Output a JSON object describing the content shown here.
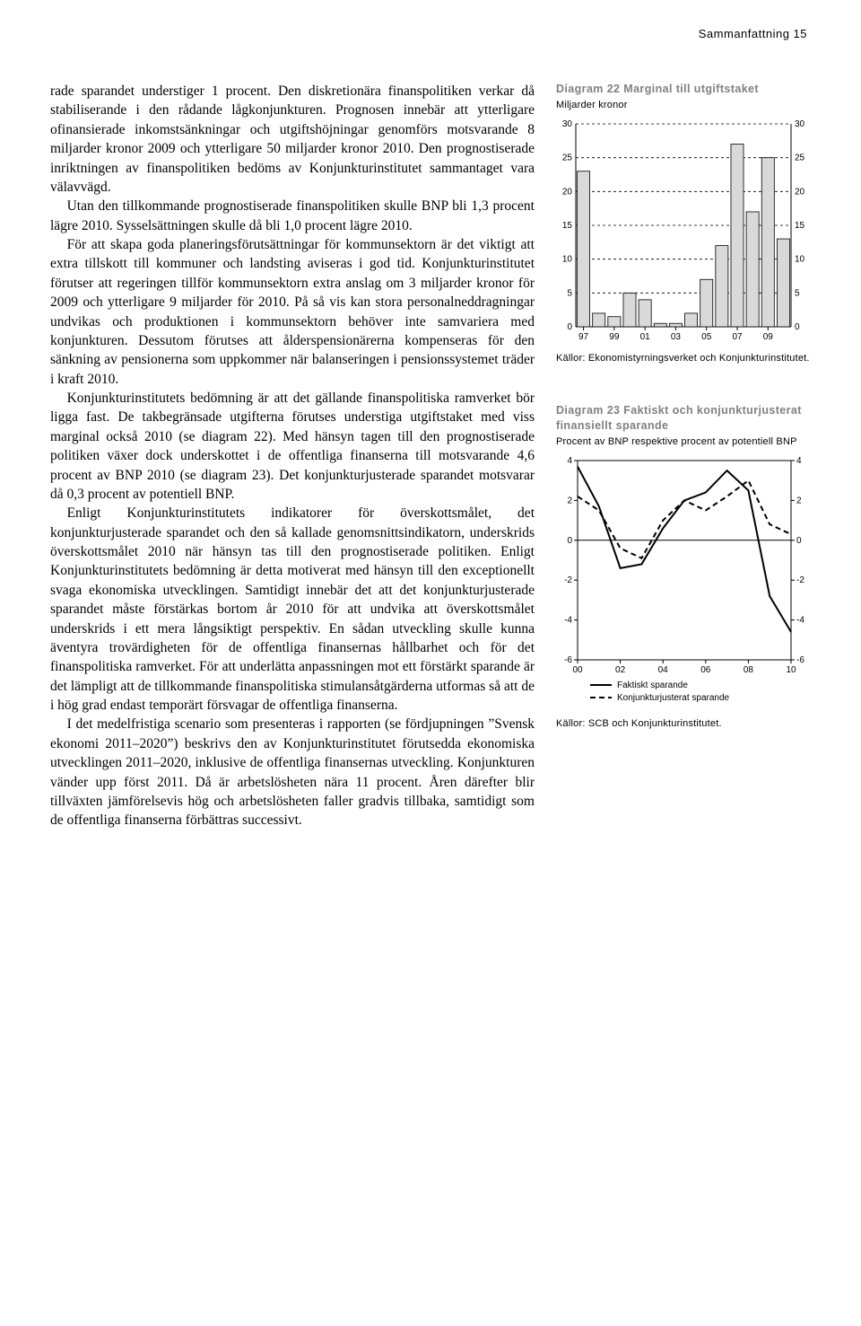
{
  "header": {
    "running_head": "Sammanfattning  15"
  },
  "body": {
    "p1": "rade sparandet understiger 1 procent. Den diskretionära finanspolitiken verkar då stabiliserande i den rådande lågkonjunkturen. Prognosen innebär att ytterligare ofinansierade inkomstsänkningar och utgiftshöjningar genomförs motsvarande 8 miljarder kronor 2009 och ytterligare 50 miljarder kronor 2010. Den prognostiserade inriktningen av finanspolitiken bedöms av Konjunkturinstitutet sammantaget vara välavvägd.",
    "p2": "Utan den tillkommande prognostiserade finanspolitiken skulle BNP bli 1,3 procent lägre 2010. Sysselsättningen skulle då bli 1,0 procent lägre 2010.",
    "p3": "För att skapa goda planeringsförutsättningar för kommunsektorn är det viktigt att extra tillskott till kommuner och landsting aviseras i god tid. Konjunkturinstitutet förutser att regeringen tillför kommunsektorn extra anslag om 3 miljarder kronor för 2009 och ytterligare 9 miljarder för 2010. På så vis kan stora personalneddragningar undvikas och produktionen i kommunsektorn behöver inte samvariera med konjunkturen. Dessutom förutses att ålderspensionärerna kompenseras för den sänkning av pensionerna som uppkommer när balanseringen i pensionssystemet träder i kraft 2010.",
    "p4": "Konjunkturinstitutets bedömning är att det gällande finanspolitiska ramverket bör ligga fast. De takbegränsade utgifterna förutses understiga utgiftstaket med viss marginal också 2010 (se diagram 22). Med hänsyn tagen till den prognostiserade politiken växer dock underskottet i de offentliga finanserna till motsvarande 4,6 procent av BNP 2010 (se diagram 23). Det konjunkturjusterade sparandet motsvarar då 0,3 procent av potentiell BNP.",
    "p5": "Enligt Konjunkturinstitutets indikatorer för överskottsmålet, det konjunkturjusterade sparandet och den så kallade genomsnittsindikatorn, underskrids överskottsmålet 2010 när hänsyn tas till den prognostiserade politiken. Enligt Konjunkturinstitutets bedömning är detta motiverat med hänsyn till den exceptionellt svaga ekonomiska utvecklingen. Samtidigt innebär det att det konjunkturjusterade sparandet måste förstärkas bortom år 2010 för att undvika att överskottsmålet underskrids i ett mera långsiktigt perspektiv. En sådan utveckling skulle kunna äventyra trovärdigheten för de offentliga finansernas hållbarhet och för det finanspolitiska ramverket. För att underlätta anpassningen mot ett förstärkt sparande är det lämpligt att de tillkommande finanspolitiska stimulansåtgärderna utformas så att de i hög grad endast temporärt försvagar de offentliga finanserna.",
    "p6": "I det medelfristiga scenario som presenteras i rapporten (se fördjupningen ”Svensk ekonomi 2011–2020”) beskrivs den av Konjunkturinstitutet förutsedda ekonomiska utvecklingen 2011–2020, inklusive de offentliga finansernas utveckling. Konjunkturen vänder upp först 2011. Då är arbetslösheten nära 11 procent. Åren därefter blir tillväxten jämförelsevis hög och arbetslösheten faller gradvis tillbaka, samtidigt som de offentliga finanserna förbättras successivt."
  },
  "chart22": {
    "title": "Diagram 22 Marginal till utgiftstaket",
    "subtitle": "Miljarder kronor",
    "type": "bar",
    "categories": [
      "97",
      "98",
      "99",
      "00",
      "01",
      "02",
      "03",
      "04",
      "05",
      "06",
      "07",
      "08",
      "09",
      "10"
    ],
    "x_tick_labels": [
      "97",
      "99",
      "01",
      "03",
      "05",
      "07",
      "09"
    ],
    "values": [
      23,
      2,
      1.5,
      5,
      4,
      0.5,
      0.5,
      2,
      7,
      12,
      27,
      17,
      25,
      13
    ],
    "ylim": [
      0,
      30
    ],
    "ytick_step": 5,
    "bar_color": "#d9d9d9",
    "bar_border": "#000000",
    "grid_color": "#000000",
    "frame_color": "#000000",
    "axis_fontsize": 10,
    "source": "Källor: Ekonomistyrningsverket och Konjunkturinstitutet."
  },
  "chart23": {
    "title": "Diagram 23 Faktiskt och konjunkturjusterat finansiellt sparande",
    "subtitle": "Procent av BNP respektive procent av potentiell BNP",
    "type": "line",
    "x_labels": [
      "00",
      "02",
      "04",
      "06",
      "08",
      "10"
    ],
    "series": [
      {
        "name": "Faktiskt sparande",
        "style": "solid",
        "color": "#000000",
        "width": 2,
        "x": [
          0,
          1,
          2,
          3,
          4,
          5,
          6,
          7,
          8,
          9,
          10
        ],
        "y": [
          3.7,
          1.7,
          -1.4,
          -1.2,
          0.6,
          2.0,
          2.4,
          3.5,
          2.5,
          -2.8,
          -4.6
        ]
      },
      {
        "name": "Konjunkturjusterat sparande",
        "style": "dashed",
        "color": "#000000",
        "width": 2,
        "x": [
          0,
          1,
          2,
          3,
          4,
          5,
          6,
          7,
          8,
          9,
          10
        ],
        "y": [
          2.2,
          1.5,
          -0.4,
          -0.9,
          1.0,
          2.0,
          1.5,
          2.2,
          3.0,
          0.8,
          0.3
        ]
      }
    ],
    "ylim": [
      -6,
      4
    ],
    "ytick_step": 2,
    "xlim": [
      0,
      10
    ],
    "grid_color": "#000000",
    "legend": [
      "Faktiskt sparande",
      "Konjunkturjusterat sparande"
    ],
    "source": "Källor: SCB och Konjunkturinstitutet."
  }
}
